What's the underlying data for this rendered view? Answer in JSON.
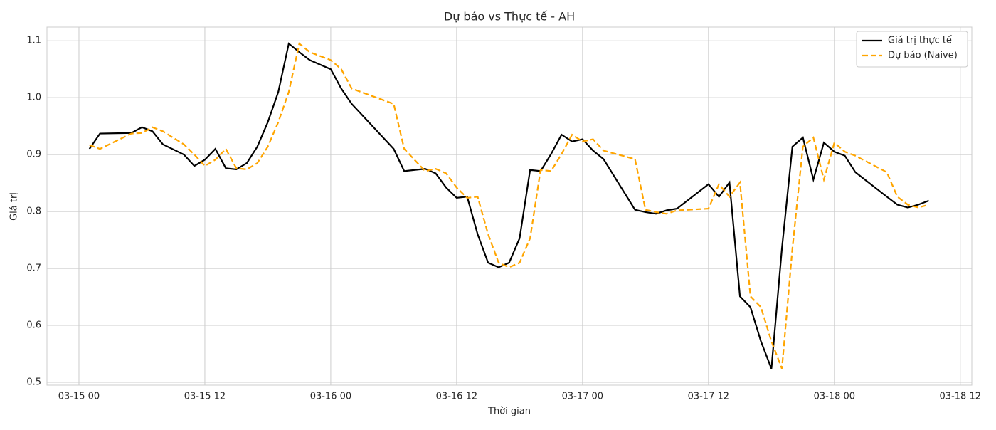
{
  "chart_data": {
    "type": "line",
    "title": "Dự báo vs Thực tế - AH",
    "x_label": "Thời gian",
    "y_label": "Giá trị",
    "x": [
      1,
      2,
      5,
      6,
      7,
      8,
      10,
      11,
      12,
      13,
      14,
      15,
      16,
      17,
      18,
      19,
      20,
      21,
      22,
      24,
      25,
      26,
      30,
      31,
      33,
      34,
      35,
      36,
      37,
      38,
      39,
      40,
      41,
      42,
      43,
      44,
      45,
      46,
      47,
      48,
      49,
      50,
      53,
      54,
      55,
      56,
      57,
      60,
      61,
      62,
      63,
      64,
      65,
      66,
      67,
      68,
      69,
      70,
      71,
      72,
      73,
      74,
      77,
      78,
      79,
      80,
      81
    ],
    "series": [
      {
        "name": "Giá trị thực tế",
        "color": "#000000",
        "dash": "solid",
        "values": [
          0.91,
          0.937,
          0.938,
          0.948,
          0.941,
          0.918,
          0.9,
          0.88,
          0.891,
          0.91,
          0.876,
          0.874,
          0.885,
          0.914,
          0.957,
          1.01,
          1.095,
          1.08,
          1.066,
          1.05,
          1.016,
          0.989,
          0.91,
          0.871,
          0.875,
          0.867,
          0.842,
          0.824,
          0.826,
          0.76,
          0.71,
          0.702,
          0.71,
          0.753,
          0.873,
          0.871,
          0.901,
          0.935,
          0.923,
          0.927,
          0.907,
          0.892,
          0.803,
          0.799,
          0.796,
          0.802,
          0.805,
          0.848,
          0.826,
          0.851,
          0.651,
          0.632,
          0.572,
          0.524,
          0.735,
          0.914,
          0.93,
          0.856,
          0.921,
          0.905,
          0.898,
          0.869,
          0.826,
          0.812,
          0.807,
          0.812,
          0.819
        ]
      },
      {
        "name": "Dự báo (Naive)",
        "color": "#ffa500",
        "dash": "dashed",
        "values": [
          0.917,
          0.91,
          0.937,
          0.938,
          0.948,
          0.941,
          0.918,
          0.9,
          0.88,
          0.891,
          0.91,
          0.876,
          0.874,
          0.885,
          0.914,
          0.957,
          1.01,
          1.095,
          1.08,
          1.066,
          1.05,
          1.016,
          0.989,
          0.91,
          0.871,
          0.875,
          0.867,
          0.842,
          0.824,
          0.826,
          0.76,
          0.71,
          0.702,
          0.71,
          0.753,
          0.873,
          0.871,
          0.901,
          0.935,
          0.923,
          0.927,
          0.907,
          0.892,
          0.803,
          0.799,
          0.796,
          0.802,
          0.805,
          0.848,
          0.826,
          0.851,
          0.651,
          0.632,
          0.572,
          0.524,
          0.735,
          0.914,
          0.93,
          0.856,
          0.921,
          0.905,
          0.898,
          0.869,
          0.826,
          0.812,
          0.807,
          0.812
        ]
      }
    ],
    "xlim": [
      -3.05,
      85.1
    ],
    "xticks": [
      {
        "value": 0,
        "label": "03-15 00"
      },
      {
        "value": 12,
        "label": "03-15 12"
      },
      {
        "value": 24,
        "label": "03-16 00"
      },
      {
        "value": 36,
        "label": "03-16 12"
      },
      {
        "value": 48,
        "label": "03-17 00"
      },
      {
        "value": 60,
        "label": "03-17 12"
      },
      {
        "value": 72,
        "label": "03-18 00"
      },
      {
        "value": 84,
        "label": "03-18 12"
      }
    ],
    "ylim": [
      0.495,
      1.124
    ],
    "yticks": [
      0.5,
      0.6,
      0.7,
      0.8,
      0.9,
      {
        "value": 1.0,
        "label": "1.0"
      },
      1.1
    ],
    "grid": true,
    "legend": "upper right"
  }
}
